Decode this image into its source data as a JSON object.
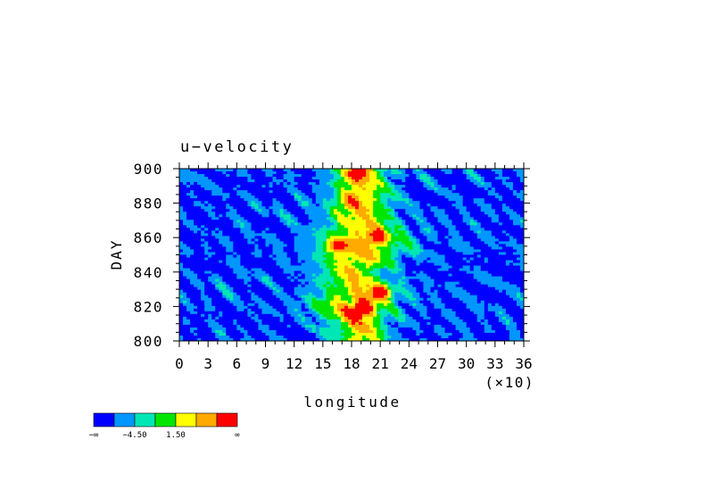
{
  "chart_data": {
    "type": "heatmap",
    "title": "u−velocity",
    "xlabel": "longitude",
    "ylabel": "DAY",
    "x_multiplier_label": "(×10)",
    "xlim": [
      0,
      36
    ],
    "ylim": [
      800,
      900
    ],
    "x_ticks": [
      "0",
      "3",
      "6",
      "9",
      "12",
      "15",
      "18",
      "21",
      "24",
      "27",
      "30",
      "33",
      "36"
    ],
    "y_ticks": [
      "800",
      "820",
      "840",
      "860",
      "880",
      "900"
    ],
    "colorbar": {
      "colors": [
        "#0000ff",
        "#0096ff",
        "#00e6b4",
        "#00e600",
        "#ffff00",
        "#ffaa00",
        "#ff0000"
      ],
      "labels": [
        {
          "text": "−∞",
          "boundary": 0
        },
        {
          "text": "−4.50",
          "boundary": 2
        },
        {
          "text": "1.50",
          "boundary": 4
        },
        {
          "text": "∞",
          "boundary": 7
        }
      ]
    },
    "bands": [
      {
        "day": 800,
        "center": 19.0,
        "width": 2.5
      },
      {
        "day": 810,
        "center": 18.5,
        "width": 3.2
      },
      {
        "day": 820,
        "center": 18.0,
        "width": 4.5
      },
      {
        "day": 830,
        "center": 19.0,
        "width": 4.0
      },
      {
        "day": 840,
        "center": 18.0,
        "width": 3.0
      },
      {
        "day": 850,
        "center": 19.0,
        "width": 4.5
      },
      {
        "day": 860,
        "center": 19.5,
        "width": 4.5
      },
      {
        "day": 870,
        "center": 19.0,
        "width": 3.5
      },
      {
        "day": 880,
        "center": 19.0,
        "width": 3.0
      },
      {
        "day": 890,
        "center": 19.0,
        "width": 3.0
      },
      {
        "day": 900,
        "center": 19.0,
        "width": 2.8
      }
    ],
    "hotspots": [
      {
        "x": 16.5,
        "y": 855,
        "strength": 2.2
      },
      {
        "x": 19.0,
        "y": 818,
        "strength": 2.5
      },
      {
        "x": 21.0,
        "y": 828,
        "strength": 2.0
      },
      {
        "x": 18.5,
        "y": 897,
        "strength": 1.8
      },
      {
        "x": 20.5,
        "y": 860,
        "strength": 1.5
      },
      {
        "x": 17.5,
        "y": 880,
        "strength": 1.2
      }
    ]
  }
}
